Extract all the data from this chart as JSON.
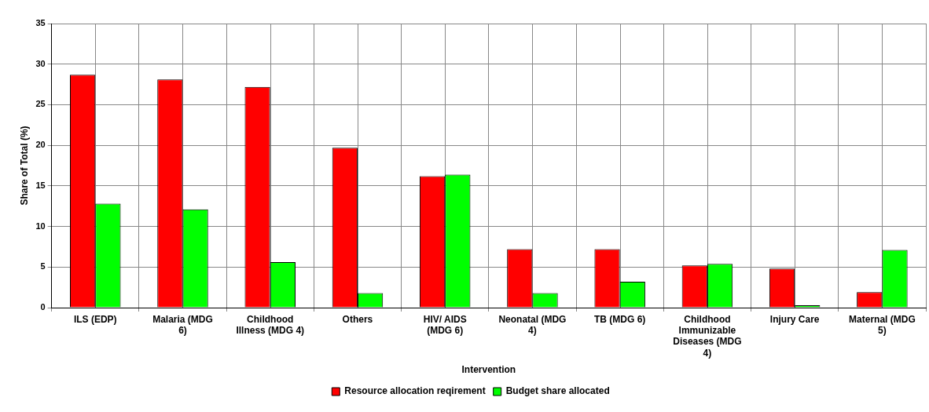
{
  "chart_data": {
    "type": "bar",
    "xlabel": "Intervention",
    "ylabel": "Share of Total (%)",
    "categories": [
      "ILS (EDP)",
      "Malaria (MDG 6)",
      "Childhood Illness (MDG 4)",
      "Others",
      "HIV/ AIDS (MDG 6)",
      "Neonatal (MDG 4)",
      "TB (MDG 6)",
      "Childhood Immunizable Diseases (MDG 4)",
      "Injury Care",
      "Maternal (MDG 5)"
    ],
    "series": [
      {
        "name": "Resource allocation reqirement",
        "color": "#ff0000",
        "values": [
          28.7,
          28.1,
          27.2,
          19.7,
          16.2,
          7.2,
          7.2,
          5.2,
          4.8,
          1.9
        ]
      },
      {
        "name": "Budget share allocated",
        "color": "#00ff00",
        "values": [
          12.8,
          12.1,
          5.6,
          1.8,
          16.4,
          1.8,
          3.2,
          5.4,
          0.3,
          7.1
        ]
      }
    ],
    "ylim": [
      0,
      35
    ],
    "yticks": [
      0,
      5,
      10,
      15,
      20,
      25,
      30,
      35
    ],
    "grid": true,
    "legend": "bottom"
  }
}
